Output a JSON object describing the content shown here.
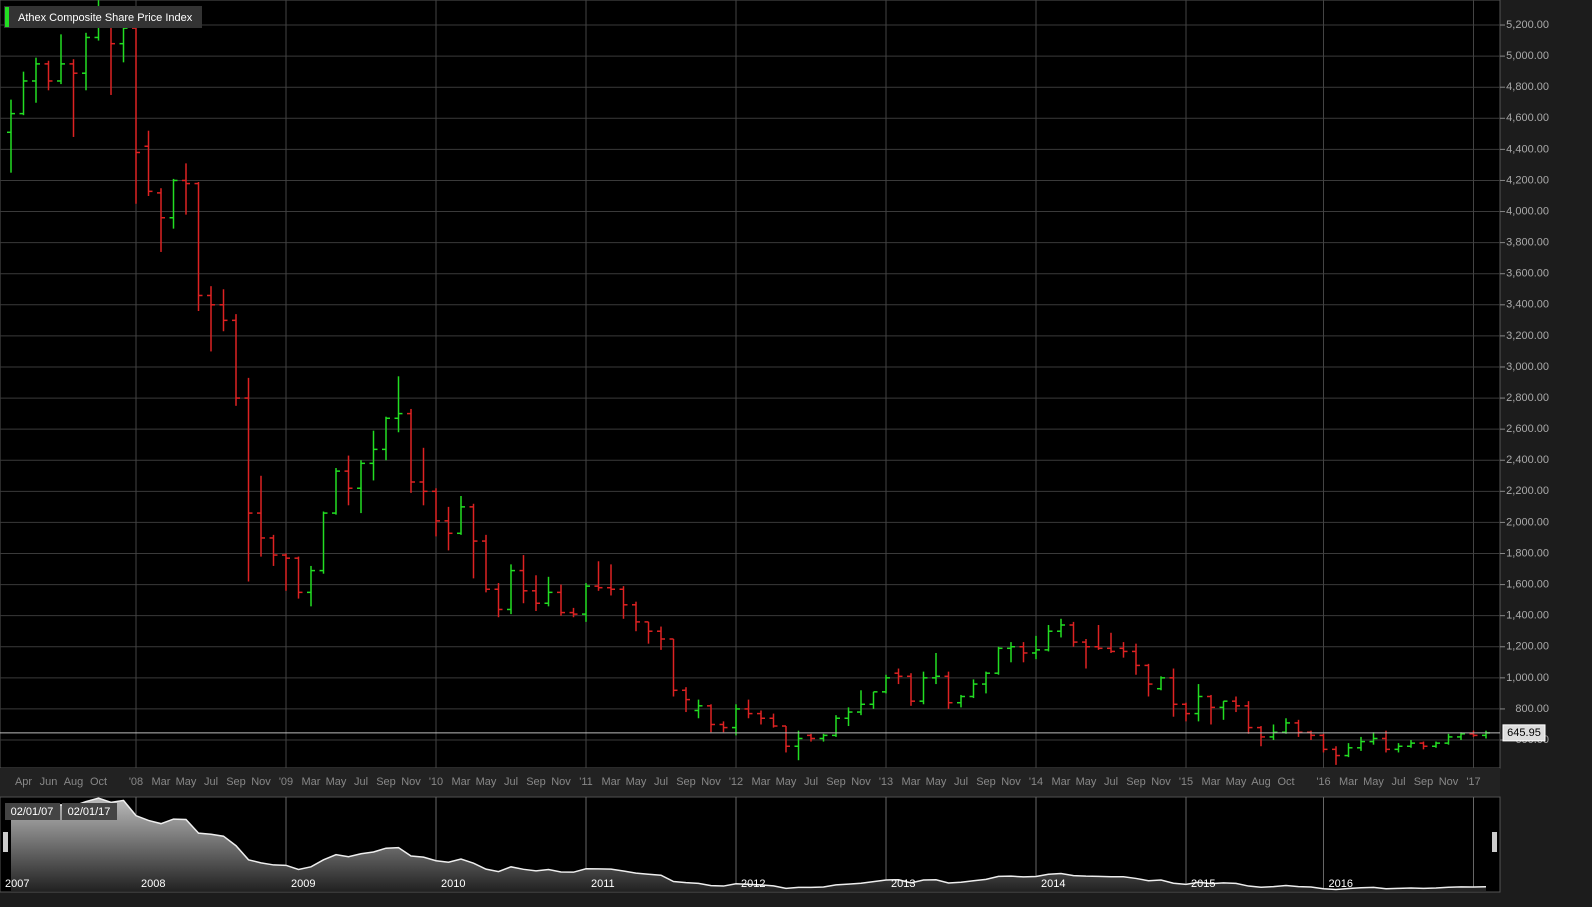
{
  "chart_data": {
    "type": "ohlc",
    "title": "Athex Composite Share Price Index",
    "categories": [
      null,
      "Apr",
      null,
      "Jun",
      null,
      "Aug",
      null,
      "Oct",
      null,
      null,
      "'08",
      null,
      "Mar",
      null,
      "May",
      null,
      "Jul",
      null,
      "Sep",
      null,
      "Nov",
      null,
      "'09",
      null,
      "Mar",
      null,
      "May",
      null,
      "Jul",
      null,
      "Sep",
      null,
      "Nov",
      null,
      "'10",
      null,
      "Mar",
      null,
      "May",
      null,
      "Jul",
      null,
      "Sep",
      null,
      "Nov",
      null,
      "'11",
      null,
      "Mar",
      null,
      "May",
      null,
      "Jul",
      null,
      "Sep",
      null,
      "Nov",
      null,
      "'12",
      null,
      "Mar",
      null,
      "May",
      null,
      "Jul",
      null,
      "Sep",
      null,
      "Nov",
      null,
      "'13",
      null,
      "Mar",
      null,
      "May",
      null,
      "Jul",
      null,
      "Sep",
      null,
      "Nov",
      null,
      "'14",
      null,
      "Mar",
      null,
      "May",
      null,
      "Jul",
      null,
      "Sep",
      null,
      "Nov",
      null,
      "'15",
      null,
      "Mar",
      null,
      "May",
      null,
      "Aug",
      null,
      "Oct",
      null,
      null,
      "'16",
      null,
      "Mar",
      null,
      "May",
      null,
      "Jul",
      null,
      "Sep",
      null,
      "Nov",
      null,
      "'17",
      null
    ],
    "ohlc": [
      [
        4510,
        4720,
        4250,
        4630
      ],
      [
        4630,
        4900,
        4620,
        4840
      ],
      [
        4840,
        4990,
        4700,
        4950
      ],
      [
        4950,
        4970,
        4780,
        4840
      ],
      [
        4840,
        5140,
        4820,
        4950
      ],
      [
        4950,
        4980,
        4480,
        4890
      ],
      [
        4890,
        5150,
        4780,
        5120
      ],
      [
        5120,
        5360,
        5100,
        5300
      ],
      [
        5300,
        5320,
        4750,
        5080
      ],
      [
        5080,
        5300,
        4960,
        5180
      ],
      [
        5180,
        5200,
        4050,
        4380
      ],
      [
        4420,
        4520,
        4100,
        4130
      ],
      [
        4120,
        4150,
        3740,
        3960
      ],
      [
        3960,
        4210,
        3890,
        4200
      ],
      [
        4200,
        4310,
        3980,
        4180
      ],
      [
        4180,
        4190,
        3360,
        3460
      ],
      [
        3460,
        3520,
        3100,
        3400
      ],
      [
        3400,
        3500,
        3230,
        3300
      ],
      [
        3300,
        3340,
        2750,
        2800
      ],
      [
        2800,
        2930,
        1620,
        2060
      ],
      [
        2060,
        2300,
        1780,
        1900
      ],
      [
        1900,
        1920,
        1720,
        1790
      ],
      [
        1790,
        1800,
        1560,
        1770
      ],
      [
        1770,
        1780,
        1510,
        1550
      ],
      [
        1550,
        1720,
        1460,
        1690
      ],
      [
        1690,
        2070,
        1670,
        2060
      ],
      [
        2060,
        2350,
        2050,
        2330
      ],
      [
        2330,
        2430,
        2110,
        2220
      ],
      [
        2220,
        2400,
        2060,
        2380
      ],
      [
        2380,
        2590,
        2270,
        2470
      ],
      [
        2470,
        2680,
        2400,
        2670
      ],
      [
        2670,
        2940,
        2580,
        2700
      ],
      [
        2700,
        2730,
        2190,
        2260
      ],
      [
        2260,
        2480,
        2110,
        2200
      ],
      [
        2200,
        2220,
        1910,
        2010
      ],
      [
        2010,
        2100,
        1820,
        1930
      ],
      [
        1930,
        2170,
        1920,
        2100
      ],
      [
        2100,
        2120,
        1640,
        1880
      ],
      [
        1880,
        1920,
        1550,
        1570
      ],
      [
        1570,
        1610,
        1390,
        1440
      ],
      [
        1440,
        1730,
        1410,
        1690
      ],
      [
        1690,
        1790,
        1480,
        1560
      ],
      [
        1560,
        1660,
        1430,
        1480
      ],
      [
        1480,
        1650,
        1460,
        1550
      ],
      [
        1550,
        1600,
        1400,
        1420
      ],
      [
        1420,
        1450,
        1390,
        1410
      ],
      [
        1410,
        1610,
        1360,
        1590
      ],
      [
        1590,
        1750,
        1560,
        1580
      ],
      [
        1580,
        1730,
        1530,
        1570
      ],
      [
        1570,
        1590,
        1380,
        1470
      ],
      [
        1470,
        1490,
        1300,
        1360
      ],
      [
        1360,
        1360,
        1220,
        1300
      ],
      [
        1300,
        1330,
        1180,
        1250
      ],
      [
        1250,
        1250,
        880,
        920
      ],
      [
        920,
        940,
        780,
        860
      ],
      [
        790,
        860,
        740,
        820
      ],
      [
        820,
        830,
        650,
        700
      ],
      [
        700,
        720,
        650,
        680
      ],
      [
        680,
        830,
        630,
        800
      ],
      [
        800,
        860,
        740,
        770
      ],
      [
        770,
        790,
        700,
        740
      ],
      [
        740,
        770,
        680,
        690
      ],
      [
        690,
        690,
        520,
        560
      ],
      [
        560,
        660,
        470,
        610
      ],
      [
        630,
        640,
        590,
        610
      ],
      [
        610,
        640,
        590,
        630
      ],
      [
        630,
        760,
        620,
        740
      ],
      [
        740,
        810,
        690,
        780
      ],
      [
        780,
        920,
        760,
        830
      ],
      [
        830,
        910,
        800,
        910
      ],
      [
        910,
        1020,
        900,
        1000
      ],
      [
        1030,
        1060,
        960,
        1010
      ],
      [
        1010,
        1030,
        820,
        850
      ],
      [
        850,
        1040,
        830,
        1000
      ],
      [
        1000,
        1160,
        960,
        1010
      ],
      [
        1010,
        1040,
        800,
        840
      ],
      [
        840,
        890,
        810,
        880
      ],
      [
        880,
        990,
        870,
        960
      ],
      [
        960,
        1040,
        900,
        1030
      ],
      [
        1030,
        1200,
        1020,
        1190
      ],
      [
        1190,
        1230,
        1100,
        1200
      ],
      [
        1200,
        1230,
        1100,
        1160
      ],
      [
        1160,
        1270,
        1120,
        1180
      ],
      [
        1180,
        1340,
        1170,
        1300
      ],
      [
        1300,
        1380,
        1260,
        1340
      ],
      [
        1340,
        1360,
        1200,
        1230
      ],
      [
        1230,
        1250,
        1060,
        1200
      ],
      [
        1200,
        1340,
        1180,
        1190
      ],
      [
        1190,
        1290,
        1160,
        1170
      ],
      [
        1190,
        1230,
        1130,
        1170
      ],
      [
        1170,
        1220,
        1020,
        1080
      ],
      [
        1080,
        1090,
        880,
        960
      ],
      [
        930,
        1010,
        920,
        1000
      ],
      [
        1000,
        1060,
        750,
        830
      ],
      [
        830,
        840,
        720,
        770
      ],
      [
        770,
        960,
        720,
        880
      ],
      [
        880,
        890,
        700,
        810
      ],
      [
        810,
        850,
        730,
        850
      ],
      [
        850,
        880,
        780,
        820
      ],
      [
        820,
        850,
        640,
        680
      ],
      [
        680,
        690,
        560,
        620
      ],
      [
        620,
        700,
        600,
        650
      ],
      [
        650,
        740,
        640,
        710
      ],
      [
        710,
        730,
        620,
        650
      ],
      [
        650,
        660,
        600,
        630
      ],
      [
        630,
        640,
        520,
        540
      ],
      [
        540,
        560,
        440,
        500
      ],
      [
        500,
        580,
        490,
        550
      ],
      [
        550,
        620,
        530,
        590
      ],
      [
        590,
        650,
        570,
        610
      ],
      [
        610,
        660,
        520,
        540
      ],
      [
        540,
        580,
        520,
        560
      ],
      [
        560,
        600,
        550,
        580
      ],
      [
        580,
        590,
        540,
        560
      ],
      [
        560,
        590,
        550,
        580
      ],
      [
        580,
        640,
        570,
        620
      ],
      [
        620,
        650,
        600,
        640
      ],
      [
        640,
        660,
        620,
        630
      ],
      [
        630,
        660,
        610,
        645.95
      ]
    ],
    "up_color": "#22dd22",
    "down_color": "#dd2222",
    "ylim": [
      420,
      5361
    ],
    "yticks": [
      {
        "value": 600,
        "label": "600.00"
      },
      {
        "value": 800,
        "label": "800.00"
      },
      {
        "value": 1000,
        "label": "1,000.00"
      },
      {
        "value": 1200,
        "label": "1,200.00"
      },
      {
        "value": 1400,
        "label": "1,400.00"
      },
      {
        "value": 1600,
        "label": "1,600.00"
      },
      {
        "value": 1800,
        "label": "1,800.00"
      },
      {
        "value": 2000,
        "label": "2,000.00"
      },
      {
        "value": 2200,
        "label": "2,200.00"
      },
      {
        "value": 2400,
        "label": "2,400.00"
      },
      {
        "value": 2600,
        "label": "2,600.00"
      },
      {
        "value": 2800,
        "label": "2,800.00"
      },
      {
        "value": 3000,
        "label": "3,000.00"
      },
      {
        "value": 3200,
        "label": "3,200.00"
      },
      {
        "value": 3400,
        "label": "3,400.00"
      },
      {
        "value": 3600,
        "label": "3,600.00"
      },
      {
        "value": 3800,
        "label": "3,800.00"
      },
      {
        "value": 4000,
        "label": "4,000.00"
      },
      {
        "value": 4200,
        "label": "4,200.00"
      },
      {
        "value": 4400,
        "label": "4,400.00"
      },
      {
        "value": 4600,
        "label": "4,600.00"
      },
      {
        "value": 4800,
        "label": "4,800.00"
      },
      {
        "value": 5000,
        "label": "5,000.00"
      },
      {
        "value": 5200,
        "label": "5,200.00"
      }
    ],
    "grid": true,
    "navigator": {
      "range_labels": [
        "02/01/07",
        "02/01/17"
      ],
      "years": [
        "2007",
        "2008",
        "2009",
        "2010",
        "2011",
        "2012",
        "2013",
        "2014",
        "2015",
        "2016"
      ]
    }
  }
}
